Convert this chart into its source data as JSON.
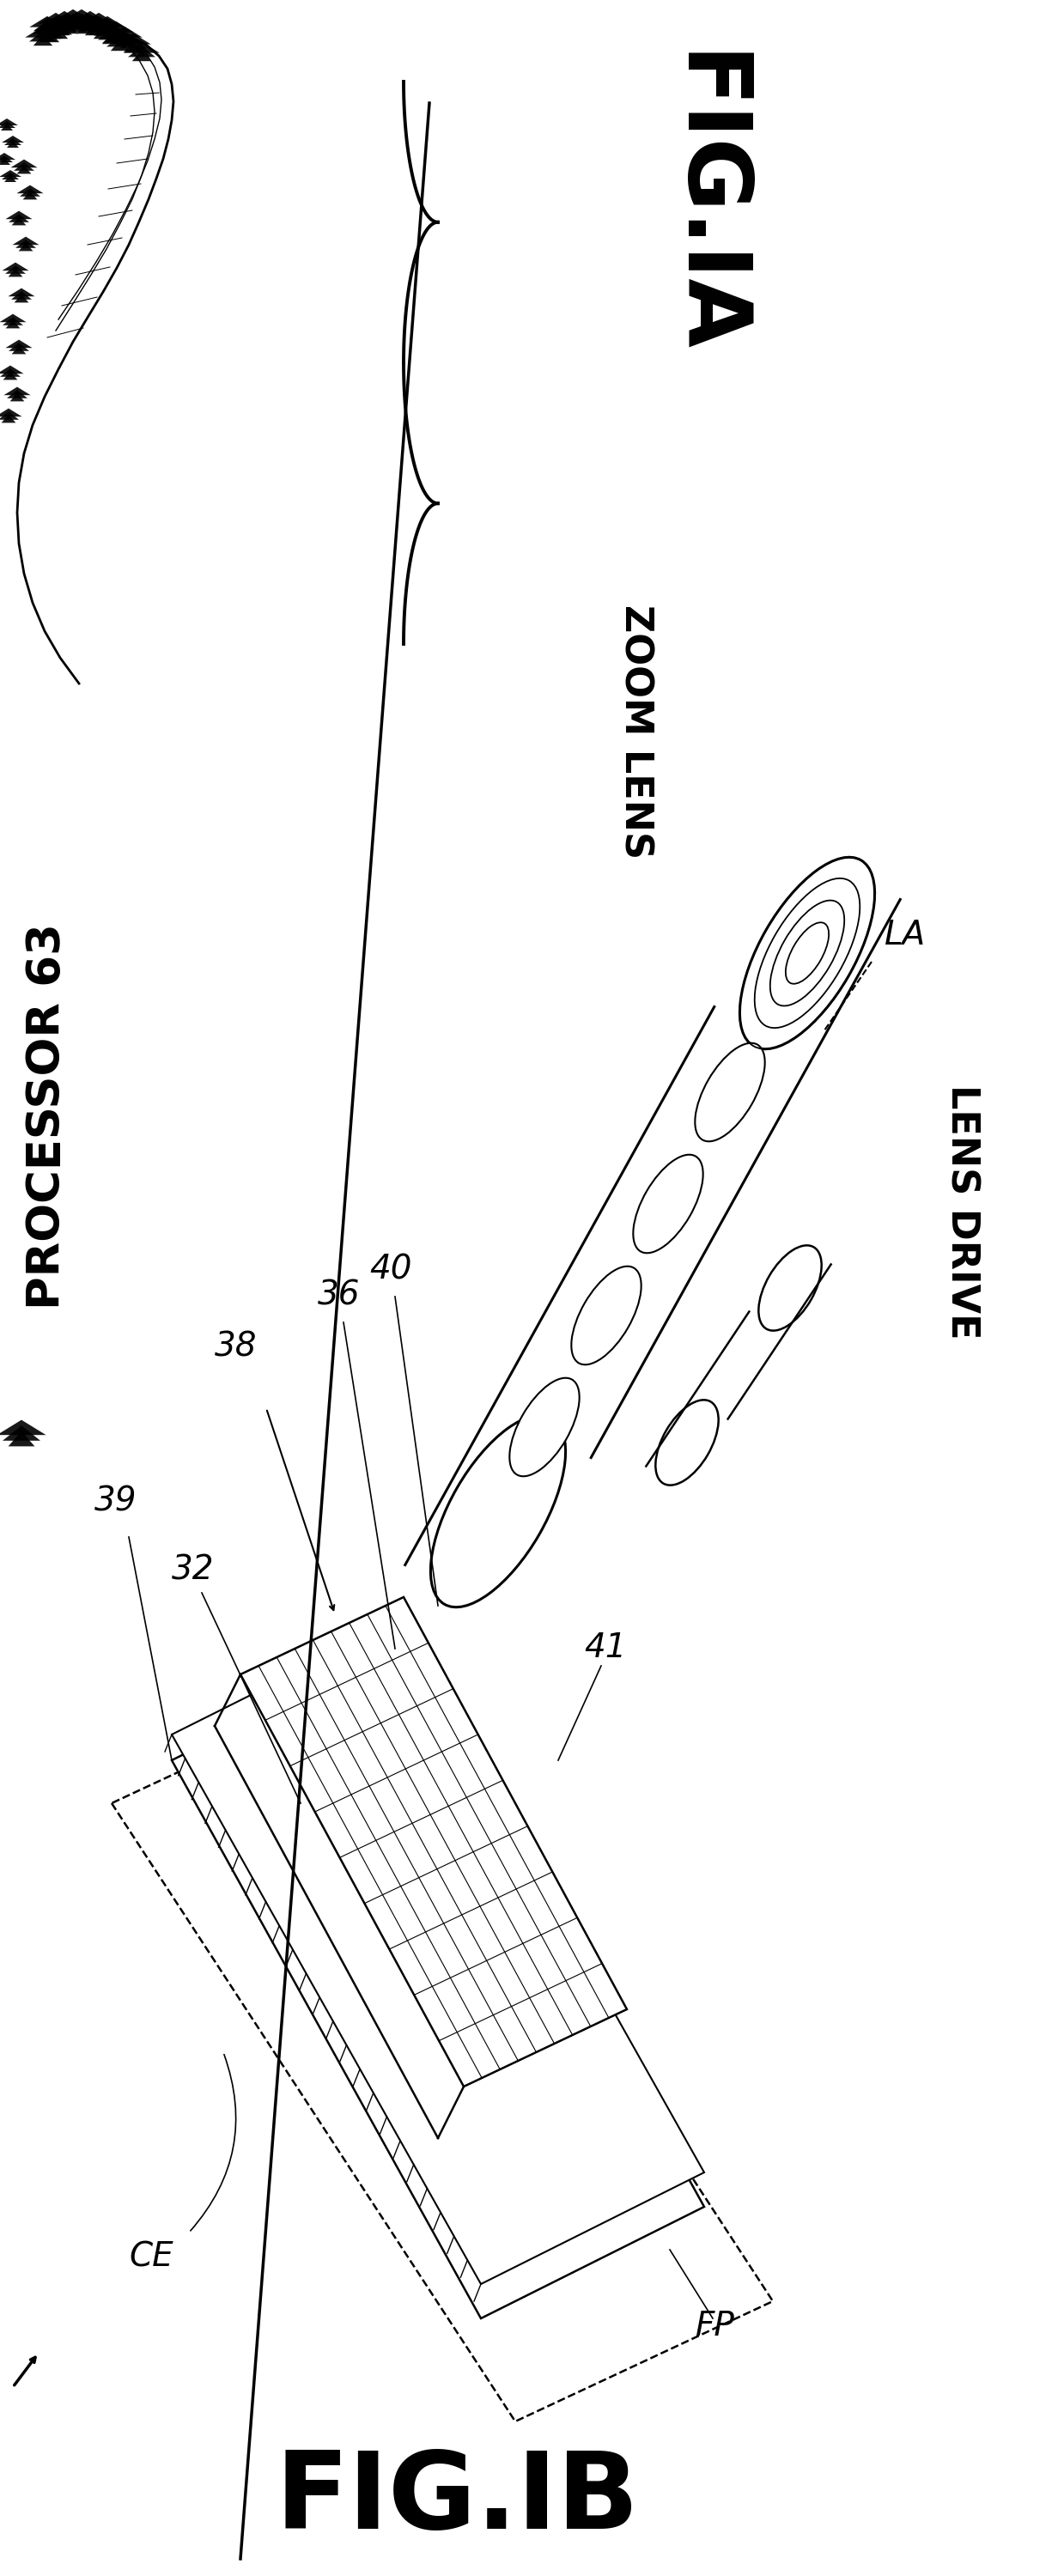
{
  "fig_width": 12.39,
  "fig_height": 30.0,
  "bg_color": "#ffffff",
  "fig1a_label": "FIG.IA",
  "fig1b_label": "FIG.IB",
  "processor_label": "PROCESSOR 63",
  "zoom_lens_label": "ZOOM LENS",
  "lens_drive_label": "LENS DRIVE",
  "label_36": "36",
  "label_38": "38",
  "label_39": "39",
  "label_40": "40",
  "label_32": "32",
  "label_41": "41",
  "label_CE": "CE",
  "label_FP": "FP",
  "label_LA": "LA"
}
